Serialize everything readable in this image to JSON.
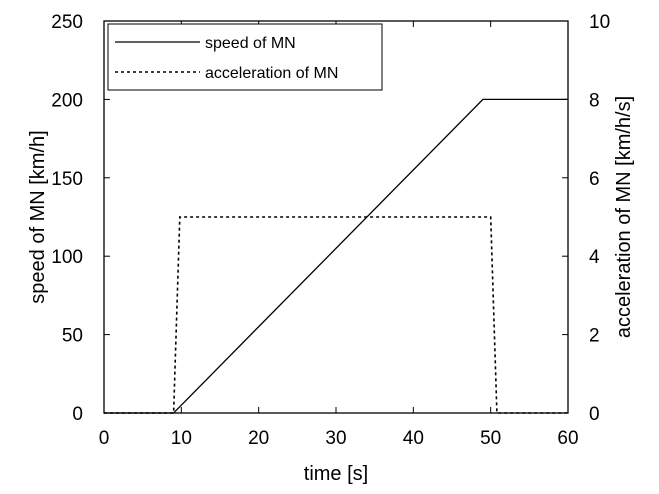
{
  "chart_data": {
    "type": "line",
    "xlabel": "time [s]",
    "ylabel": "speed of MN [km/h]",
    "y2label": "acceleration of MN [km/h/s]",
    "xlim": [
      0,
      60
    ],
    "ylim": [
      0,
      250
    ],
    "y2lim": [
      0,
      10
    ],
    "xticks": [
      "0",
      "10",
      "20",
      "30",
      "40",
      "50",
      "60"
    ],
    "yticks": [
      "0",
      "50",
      "100",
      "150",
      "200",
      "250"
    ],
    "y2ticks": [
      "0",
      "2",
      "4",
      "6",
      "8",
      "10"
    ],
    "grid": false,
    "legend_position": "top-left",
    "series": [
      {
        "name": "speed of MN",
        "axis": "left",
        "style": "solid",
        "x": [
          0,
          9,
          10,
          49,
          60
        ],
        "y": [
          0,
          0,
          5,
          200,
          200
        ]
      },
      {
        "name": "acceleration of MN",
        "axis": "right",
        "style": "dashed",
        "x": [
          0,
          9,
          9.8,
          50,
          50.8,
          60
        ],
        "y": [
          0,
          0,
          5,
          5,
          0,
          0
        ]
      }
    ]
  }
}
